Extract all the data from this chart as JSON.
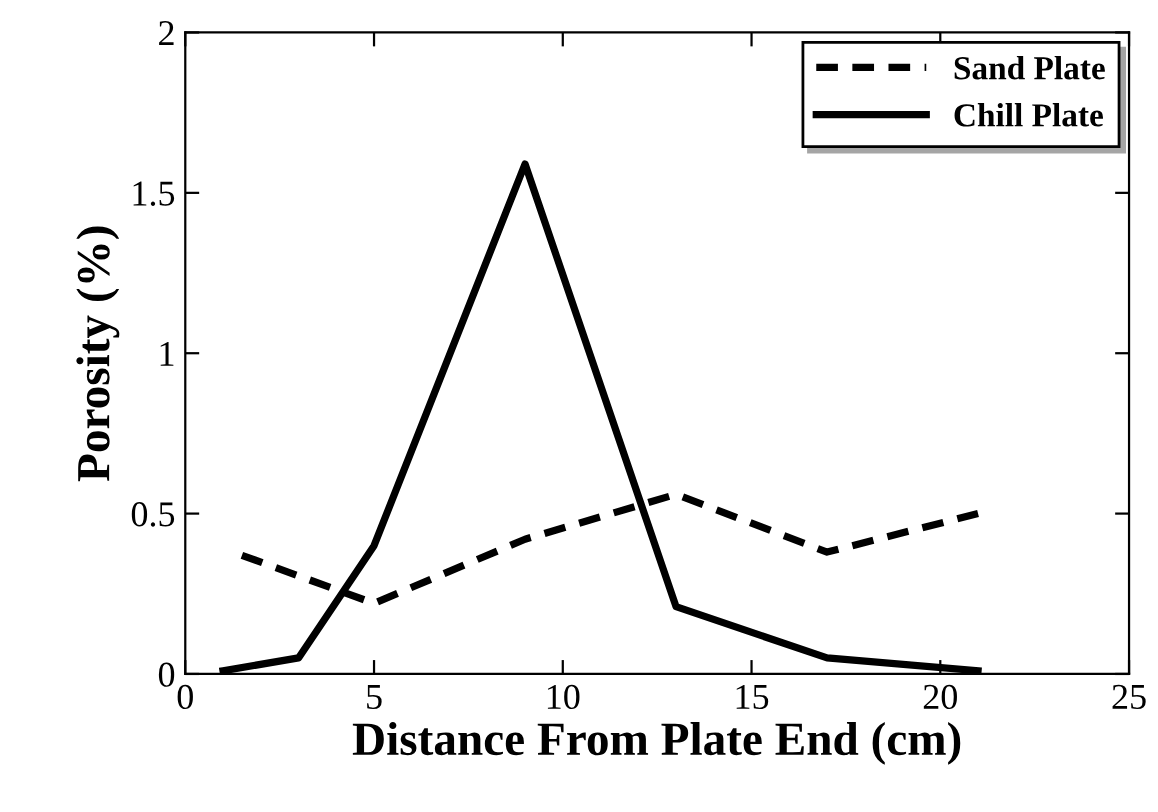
{
  "chart_data": {
    "type": "line",
    "xlabel": "Distance From Plate End (cm)",
    "ylabel": "Porosity (%)",
    "xlim": [
      0,
      25
    ],
    "xticks": [
      0,
      5,
      10,
      15,
      20,
      25
    ],
    "ylim": [
      0,
      2
    ],
    "yticks": [
      0,
      0.5,
      1,
      1.5,
      2
    ],
    "grid": false,
    "legend": "top right",
    "marker": "none",
    "series": [
      {
        "name": "Sand Plate",
        "color": "#000000",
        "line_style": "dashed",
        "x": [
          1.5,
          5,
          9,
          13,
          17,
          21
        ],
        "values": [
          0.37,
          0.22,
          0.42,
          0.56,
          0.38,
          0.5
        ]
      },
      {
        "name": "Chill Plate",
        "color": "#000000",
        "line_style": "solid",
        "x": [
          1,
          3,
          5,
          9,
          13,
          17,
          21
        ],
        "values": [
          0.01,
          0.05,
          0.4,
          1.59,
          0.21,
          0.05,
          0.01
        ]
      }
    ]
  }
}
